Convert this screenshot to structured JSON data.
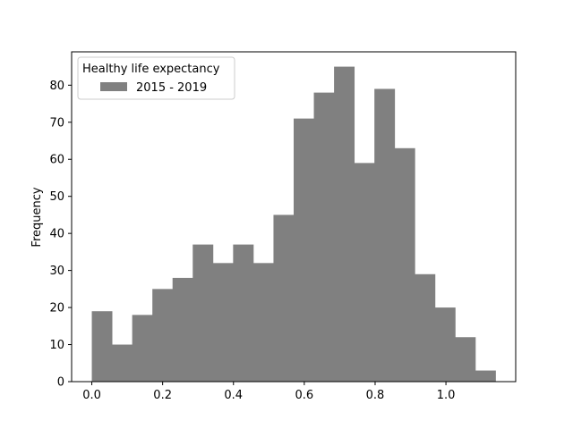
{
  "chart_data": {
    "type": "bar",
    "subtype": "histogram",
    "title": "",
    "xlabel": "",
    "ylabel": "Frequency",
    "xlim": [
      -0.057,
      1.197
    ],
    "ylim": [
      0,
      89
    ],
    "x_ticks": [
      0.0,
      0.2,
      0.4,
      0.6,
      0.8,
      1.0
    ],
    "x_tick_labels": [
      "0.0",
      "0.2",
      "0.4",
      "0.6",
      "0.8",
      "1.0"
    ],
    "y_ticks": [
      0,
      10,
      20,
      30,
      40,
      50,
      60,
      70,
      80
    ],
    "y_tick_labels": [
      "0",
      "10",
      "20",
      "30",
      "40",
      "50",
      "60",
      "70",
      "80"
    ],
    "grid": false,
    "legend": {
      "title": "Healthy life expectancy",
      "placement": "upper left",
      "entries": [
        "2015 - 2019"
      ]
    },
    "bar_color": "#808080",
    "series": [
      {
        "name": "2015 - 2019",
        "bin_edges": [
          0.0,
          0.057,
          0.114,
          0.171,
          0.228,
          0.285,
          0.342,
          0.399,
          0.456,
          0.513,
          0.57,
          0.627,
          0.684,
          0.741,
          0.798,
          0.855,
          0.912,
          0.969,
          1.026,
          1.083,
          1.14
        ],
        "values": [
          19,
          10,
          18,
          25,
          28,
          37,
          32,
          37,
          32,
          45,
          71,
          78,
          85,
          59,
          79,
          63,
          29,
          20,
          12,
          3
        ]
      }
    ]
  }
}
